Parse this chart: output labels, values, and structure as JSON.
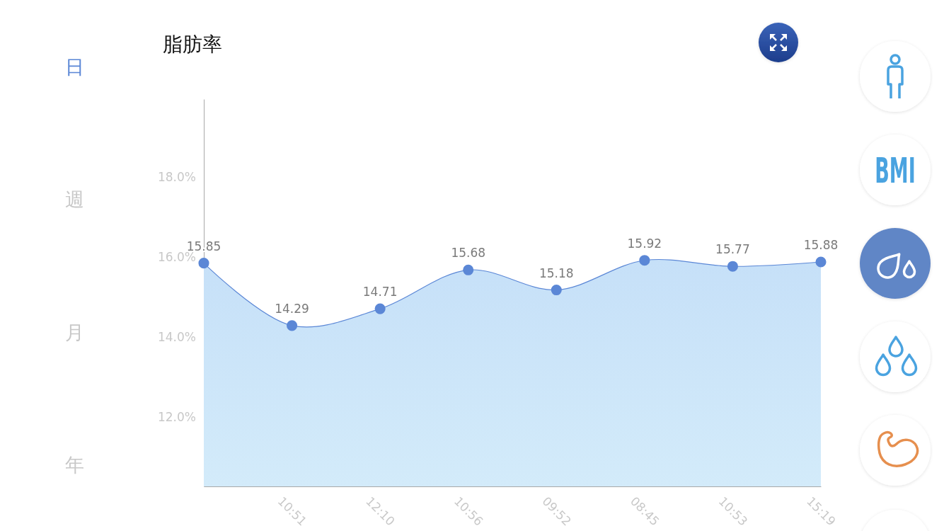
{
  "chart_data": {
    "type": "area",
    "title": "脂肪率",
    "annotations": [
      "日",
      "週",
      "月",
      "年",
      "BMI"
    ],
    "categories": [
      null,
      "10:51",
      "12:10",
      "10:56",
      "09:52",
      "08:45",
      "10:53",
      "15:19"
    ],
    "values": [
      15.85,
      14.29,
      14.71,
      15.68,
      15.18,
      15.92,
      15.77,
      15.88
    ],
    "color": "#5b87d6",
    "ylim": [
      10.27,
      19.95
    ],
    "yticks": [
      {
        "value": 12,
        "label": "12.0%"
      },
      {
        "value": 14,
        "label": "14.0%"
      },
      {
        "value": 16,
        "label": "16.0%"
      },
      {
        "value": 18,
        "label": "18.0%"
      }
    ],
    "marker": "circle",
    "data_labels": true
  }
}
